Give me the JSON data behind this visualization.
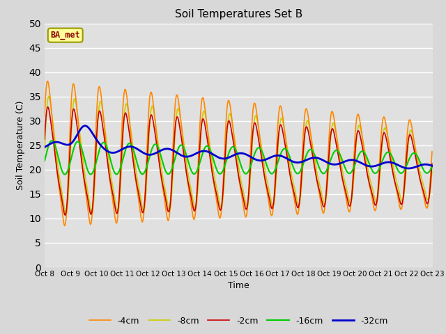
{
  "title": "Soil Temperatures Set B",
  "xlabel": "Time",
  "ylabel": "Soil Temperature (C)",
  "ylim": [
    0,
    50
  ],
  "background_color": "#e8e8e8",
  "legend_label": "BA_met",
  "x_tick_labels": [
    "Oct 8",
    "Oct 9",
    "Oct 10",
    "Oct 11",
    "Oct 12",
    "Oct 13",
    "Oct 14",
    "Oct 15",
    "Oct 16",
    "Oct 17",
    "Oct 18",
    "Oct 19",
    "Oct 20",
    "Oct 21",
    "Oct 22",
    "Oct 23"
  ],
  "series_colors": [
    "#cc0000",
    "#ff8800",
    "#cccc00",
    "#00cc00",
    "#0000cc"
  ],
  "series_labels": [
    "-2cm",
    "-4cm",
    "-8cm",
    "-16cm",
    "-32cm"
  ],
  "series_linewidths": [
    1.2,
    1.2,
    1.2,
    1.5,
    2.0
  ]
}
